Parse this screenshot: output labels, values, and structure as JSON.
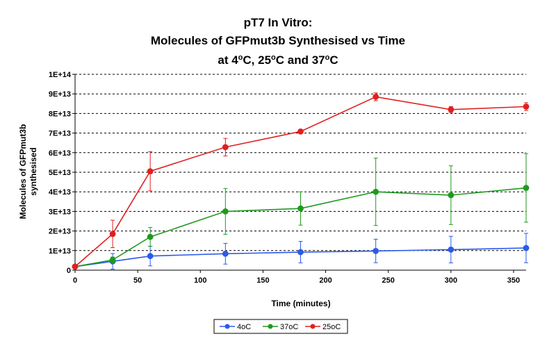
{
  "chart_data": {
    "type": "line",
    "title_lines": [
      "pT7 In Vitro:",
      "Molecules of GFPmut3b Synthesised vs Time",
      "at 4",
      "C, 25",
      "C and 37",
      "C"
    ],
    "title_degree": "o",
    "xlabel": "Time (minutes)",
    "ylabel_lines": [
      "Molecules of GFPmut3b",
      "synthesised"
    ],
    "xlim": [
      0,
      360
    ],
    "ylim": [
      0,
      100000000000000.0
    ],
    "x_ticks": [
      0,
      50,
      100,
      150,
      200,
      250,
      300,
      350
    ],
    "y_ticks": [
      0,
      10000000000000.0,
      20000000000000.0,
      30000000000000.0,
      40000000000000.0,
      50000000000000.0,
      60000000000000.0,
      70000000000000.0,
      80000000000000.0,
      90000000000000.0,
      100000000000000.0
    ],
    "y_tick_labels": [
      "0",
      "1E+13",
      "2E+13",
      "3E+13",
      "4E+13",
      "5E+13",
      "6E+13",
      "7E+13",
      "8E+13",
      "9E+13",
      "1E+14"
    ],
    "grid": "horizontal dashed",
    "legend_position": "bottom",
    "series": [
      {
        "name": "4oC",
        "color": "#2b5be8",
        "x": [
          0,
          30,
          60,
          120,
          180,
          240,
          300,
          360
        ],
        "y": [
          1800000000000.0,
          4500000000000.0,
          7200000000000.0,
          8400000000000.0,
          9200000000000.0,
          9800000000000.0,
          10500000000000.0,
          11300000000000.0
        ],
        "err": [
          0,
          4000000000000.0,
          5000000000000.0,
          5300000000000.0,
          5500000000000.0,
          6000000000000.0,
          6800000000000.0,
          7500000000000.0
        ]
      },
      {
        "name": "37oC",
        "color": "#1e9a1e",
        "x": [
          0,
          30,
          60,
          120,
          180,
          240,
          300,
          360
        ],
        "y": [
          1800000000000.0,
          5200000000000.0,
          17000000000000.0,
          30000000000000.0,
          31500000000000.0,
          40000000000000.0,
          38300000000000.0,
          42000000000000.0
        ],
        "err": [
          0,
          1500000000000.0,
          4800000000000.0,
          11700000000000.0,
          8500000000000.0,
          17200000000000.0,
          15000000000000.0,
          17500000000000.0
        ]
      },
      {
        "name": "25oC",
        "color": "#e02020",
        "x": [
          0,
          30,
          60,
          120,
          180,
          240,
          300,
          360
        ],
        "y": [
          1800000000000.0,
          18500000000000.0,
          50500000000000.0,
          62800000000000.0,
          70800000000000.0,
          88500000000000.0,
          82000000000000.0,
          83500000000000.0
        ],
        "err": [
          0,
          7000000000000.0,
          10000000000000.0,
          4500000000000.0,
          1000000000000.0,
          2000000000000.0,
          1500000000000.0,
          2000000000000.0
        ]
      }
    ]
  }
}
